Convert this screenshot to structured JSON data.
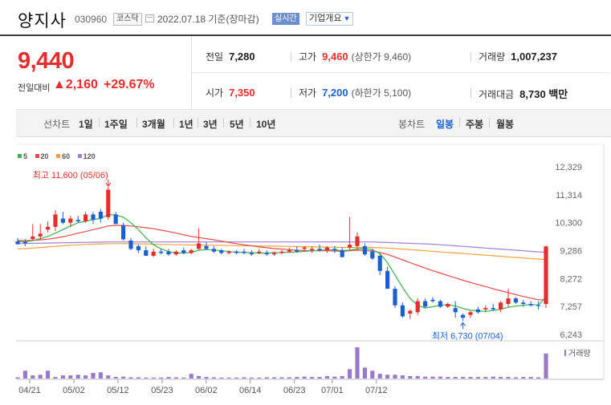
{
  "header": {
    "name": "양지사",
    "code": "030960",
    "market": "코스닥",
    "date": "2022.07.18 기준(장마감)",
    "realtime": "실시간",
    "overview": "기업개요"
  },
  "price": {
    "current": "9,440",
    "change_label": "전일대비",
    "change_value": "▲2,160",
    "change_pct": "+29.67%"
  },
  "stats": {
    "prev_label": "전일",
    "prev": "7,280",
    "high_label": "고가",
    "high": "9,460",
    "upper_limit": "(상한가 9,460)",
    "volume_label": "거래량",
    "volume": "1,007,237",
    "open_label": "시가",
    "open": "7,350",
    "low_label": "저가",
    "low": "7,200",
    "lower_limit": "(하한가 5,100)",
    "amount_label": "거래대금",
    "amount": "8,730 백만"
  },
  "toolbar": {
    "line_label": "선차트",
    "line_periods": [
      "1일",
      "1주일",
      "3개월",
      "1년",
      "3년",
      "5년",
      "10년"
    ],
    "candle_label": "봉차트",
    "candle_periods": [
      "일봉",
      "주봉",
      "월봉"
    ],
    "candle_selected": "일봉"
  },
  "colors": {
    "up": "#e62d2d",
    "down": "#1b5fd1",
    "ma5": "#3cb14a",
    "ma20": "#e54b4b",
    "ma60": "#f0a23c",
    "ma120": "#a57bd6",
    "volume": "#9b79c9"
  },
  "chart_data": {
    "type": "candlestick",
    "legend": [
      "5",
      "20",
      "60",
      "120"
    ],
    "y_ticks": [
      12329,
      11314,
      10300,
      9286,
      8272,
      7257,
      6243
    ],
    "ylim": [
      6243,
      12329
    ],
    "x_ticks": [
      "04/21",
      "05/02",
      "05/12",
      "05/23",
      "06/02",
      "06/14",
      "06/23",
      "07/01",
      "07/12"
    ],
    "high_annotation": "최고 11,600 (05/06)",
    "low_annotation": "최저 6,730 (07/04)",
    "volume_label": "거래량",
    "candles": [
      {
        "o": 9620,
        "h": 9750,
        "l": 9500,
        "c": 9520
      },
      {
        "o": 9600,
        "h": 9700,
        "l": 9450,
        "c": 9560
      },
      {
        "o": 9700,
        "h": 10250,
        "l": 9650,
        "c": 9800
      },
      {
        "o": 9800,
        "h": 10250,
        "l": 9700,
        "c": 9900
      },
      {
        "o": 10050,
        "h": 10350,
        "l": 9950,
        "c": 10150
      },
      {
        "o": 10150,
        "h": 10750,
        "l": 10000,
        "c": 10600
      },
      {
        "o": 10450,
        "h": 10700,
        "l": 10250,
        "c": 10300
      },
      {
        "o": 10300,
        "h": 10550,
        "l": 10150,
        "c": 10450
      },
      {
        "o": 10400,
        "h": 10550,
        "l": 10300,
        "c": 10350
      },
      {
        "o": 10350,
        "h": 10700,
        "l": 10300,
        "c": 10600
      },
      {
        "o": 10600,
        "h": 10700,
        "l": 10250,
        "c": 10400
      },
      {
        "o": 10700,
        "h": 10800,
        "l": 10300,
        "c": 10450
      },
      {
        "o": 10500,
        "h": 11600,
        "l": 10400,
        "c": 11500
      },
      {
        "o": 10600,
        "h": 10700,
        "l": 10250,
        "c": 10250
      },
      {
        "o": 10200,
        "h": 10300,
        "l": 9650,
        "c": 9700
      },
      {
        "o": 9650,
        "h": 9750,
        "l": 9300,
        "c": 9350
      },
      {
        "o": 9450,
        "h": 9500,
        "l": 9200,
        "c": 9300
      },
      {
        "o": 9300,
        "h": 9450,
        "l": 9100,
        "c": 9100
      },
      {
        "o": 9100,
        "h": 9350,
        "l": 9050,
        "c": 9250
      },
      {
        "o": 9250,
        "h": 9350,
        "l": 9150,
        "c": 9200
      },
      {
        "o": 9250,
        "h": 9350,
        "l": 9100,
        "c": 9150
      },
      {
        "o": 9150,
        "h": 9300,
        "l": 9100,
        "c": 9250
      },
      {
        "o": 9300,
        "h": 9400,
        "l": 9150,
        "c": 9200
      },
      {
        "o": 9200,
        "h": 9350,
        "l": 9150,
        "c": 9300
      },
      {
        "o": 9350,
        "h": 10100,
        "l": 9300,
        "c": 9550
      },
      {
        "o": 9450,
        "h": 9600,
        "l": 9300,
        "c": 9350
      },
      {
        "o": 9350,
        "h": 9450,
        "l": 9200,
        "c": 9250
      },
      {
        "o": 9300,
        "h": 9350,
        "l": 9150,
        "c": 9200
      },
      {
        "o": 9200,
        "h": 9300,
        "l": 9150,
        "c": 9250
      },
      {
        "o": 9250,
        "h": 9300,
        "l": 9150,
        "c": 9200
      },
      {
        "o": 9250,
        "h": 9350,
        "l": 9150,
        "c": 9200
      },
      {
        "o": 9200,
        "h": 9300,
        "l": 9100,
        "c": 9150
      },
      {
        "o": 9200,
        "h": 9350,
        "l": 9150,
        "c": 9250
      },
      {
        "o": 9200,
        "h": 9300,
        "l": 9100,
        "c": 9150
      },
      {
        "o": 9150,
        "h": 9250,
        "l": 9100,
        "c": 9200
      },
      {
        "o": 9200,
        "h": 9300,
        "l": 9150,
        "c": 9250
      },
      {
        "o": 9250,
        "h": 9400,
        "l": 9200,
        "c": 9300
      },
      {
        "o": 9300,
        "h": 9450,
        "l": 9200,
        "c": 9250
      },
      {
        "o": 9350,
        "h": 9450,
        "l": 9250,
        "c": 9400
      },
      {
        "o": 9300,
        "h": 9450,
        "l": 9200,
        "c": 9350
      },
      {
        "o": 9350,
        "h": 9500,
        "l": 9250,
        "c": 9300
      },
      {
        "o": 9300,
        "h": 9450,
        "l": 9200,
        "c": 9400
      },
      {
        "o": 9350,
        "h": 9450,
        "l": 9200,
        "c": 9300
      },
      {
        "o": 9300,
        "h": 9400,
        "l": 9050,
        "c": 9050
      },
      {
        "o": 9400,
        "h": 10500,
        "l": 9300,
        "c": 9500
      },
      {
        "o": 9450,
        "h": 9950,
        "l": 9300,
        "c": 9800
      },
      {
        "o": 9450,
        "h": 9550,
        "l": 9100,
        "c": 9150
      },
      {
        "o": 9250,
        "h": 9350,
        "l": 8950,
        "c": 9000
      },
      {
        "o": 9100,
        "h": 9150,
        "l": 8400,
        "c": 8550
      },
      {
        "o": 8550,
        "h": 8700,
        "l": 7900,
        "c": 7900
      },
      {
        "o": 7900,
        "h": 8000,
        "l": 7200,
        "c": 7300
      },
      {
        "o": 7300,
        "h": 7400,
        "l": 6850,
        "c": 6900
      },
      {
        "o": 7000,
        "h": 7150,
        "l": 6800,
        "c": 7100
      },
      {
        "o": 7050,
        "h": 7550,
        "l": 6950,
        "c": 7450
      },
      {
        "o": 7450,
        "h": 7550,
        "l": 7200,
        "c": 7250
      },
      {
        "o": 7500,
        "h": 7600,
        "l": 7400,
        "c": 7450
      },
      {
        "o": 7450,
        "h": 7500,
        "l": 7200,
        "c": 7250
      },
      {
        "o": 7250,
        "h": 7400,
        "l": 7200,
        "c": 7350
      },
      {
        "o": 7200,
        "h": 7450,
        "l": 6850,
        "c": 7050
      },
      {
        "o": 6950,
        "h": 7000,
        "l": 6730,
        "c": 6850
      },
      {
        "o": 6950,
        "h": 7100,
        "l": 6850,
        "c": 7050
      },
      {
        "o": 7150,
        "h": 7250,
        "l": 7000,
        "c": 7050
      },
      {
        "o": 7150,
        "h": 7300,
        "l": 7050,
        "c": 7200
      },
      {
        "o": 7200,
        "h": 7350,
        "l": 7100,
        "c": 7150
      },
      {
        "o": 7150,
        "h": 7450,
        "l": 7050,
        "c": 7400
      },
      {
        "o": 7350,
        "h": 7900,
        "l": 7250,
        "c": 7550
      },
      {
        "o": 7550,
        "h": 7600,
        "l": 7350,
        "c": 7400
      },
      {
        "o": 7400,
        "h": 7500,
        "l": 7250,
        "c": 7350
      },
      {
        "o": 7350,
        "h": 7450,
        "l": 7250,
        "c": 7300
      },
      {
        "o": 7300,
        "h": 7450,
        "l": 7150,
        "c": 7280
      },
      {
        "o": 7350,
        "h": 9460,
        "l": 7200,
        "c": 9440
      }
    ],
    "volume": [
      4,
      25,
      10,
      12,
      25,
      5,
      10,
      10,
      12,
      10,
      18,
      20,
      10,
      5,
      6,
      4,
      4,
      3,
      3,
      3,
      5,
      4,
      3,
      15,
      8,
      5,
      4,
      3,
      3,
      3,
      4,
      3,
      3,
      4,
      4,
      4,
      4,
      5,
      6,
      5,
      5,
      8,
      6,
      8,
      30,
      100,
      35,
      25,
      15,
      12,
      12,
      10,
      8,
      8,
      6,
      6,
      6,
      5,
      5,
      5,
      5,
      5,
      5,
      6,
      5,
      5,
      4,
      5,
      5,
      4,
      80
    ],
    "ma5": [
      9620,
      9600,
      9650,
      9720,
      9800,
      9920,
      10050,
      10180,
      10300,
      10350,
      10420,
      10450,
      10600,
      10580,
      10500,
      10300,
      10050,
      9750,
      9500,
      9350,
      9250,
      9200,
      9200,
      9220,
      9300,
      9320,
      9310,
      9280,
      9250,
      9230,
      9220,
      9210,
      9200,
      9200,
      9210,
      9220,
      9230,
      9240,
      9260,
      9280,
      9300,
      9310,
      9310,
      9290,
      9300,
      9350,
      9360,
      9320,
      9180,
      8850,
      8400,
      7950,
      7550,
      7300,
      7200,
      7250,
      7300,
      7330,
      7270,
      7190,
      7120,
      7100,
      7080,
      7110,
      7160,
      7230,
      7270,
      7300,
      7330,
      7310,
      7600
    ],
    "ma20": [
      9650,
      9650,
      9660,
      9680,
      9700,
      9740,
      9790,
      9850,
      9920,
      9980,
      10050,
      10110,
      10180,
      10200,
      10200,
      10180,
      10150,
      10120,
      10080,
      10030,
      9980,
      9920,
      9860,
      9800,
      9760,
      9720,
      9680,
      9630,
      9580,
      9540,
      9500,
      9460,
      9420,
      9390,
      9360,
      9340,
      9320,
      9300,
      9290,
      9280,
      9280,
      9280,
      9270,
      9260,
      9280,
      9300,
      9290,
      9270,
      9220,
      9150,
      9050,
      8950,
      8850,
      8750,
      8650,
      8560,
      8470,
      8380,
      8300,
      8210,
      8130,
      8050,
      7980,
      7900,
      7830,
      7760,
      7690,
      7620,
      7560,
      7500,
      7500
    ],
    "ma60": [
      9350,
      9360,
      9380,
      9400,
      9420,
      9440,
      9460,
      9480,
      9500,
      9510,
      9520,
      9530,
      9540,
      9540,
      9540,
      9540,
      9530,
      9530,
      9520,
      9510,
      9510,
      9500,
      9500,
      9490,
      9490,
      9480,
      9480,
      9480,
      9470,
      9470,
      9460,
      9460,
      9450,
      9450,
      9450,
      9440,
      9440,
      9430,
      9430,
      9420,
      9420,
      9410,
      9410,
      9400,
      9400,
      9400,
      9400,
      9400,
      9390,
      9380,
      9360,
      9340,
      9320,
      9300,
      9280,
      9260,
      9240,
      9220,
      9200,
      9180,
      9160,
      9140,
      9120,
      9100,
      9080,
      9060,
      9040,
      9020,
      9000,
      8980,
      8960
    ],
    "ma120": [
      9540,
      9545,
      9550,
      9555,
      9560,
      9565,
      9570,
      9575,
      9580,
      9585,
      9590,
      9595,
      9600,
      9600,
      9600,
      9600,
      9600,
      9600,
      9600,
      9600,
      9600,
      9600,
      9600,
      9600,
      9600,
      9600,
      9600,
      9600,
      9600,
      9600,
      9600,
      9600,
      9600,
      9600,
      9600,
      9600,
      9600,
      9600,
      9600,
      9600,
      9600,
      9600,
      9600,
      9600,
      9600,
      9600,
      9600,
      9600,
      9590,
      9580,
      9570,
      9560,
      9550,
      9540,
      9530,
      9520,
      9500,
      9480,
      9460,
      9440,
      9420,
      9400,
      9380,
      9360,
      9340,
      9320,
      9300,
      9280,
      9260,
      9240,
      9230
    ]
  }
}
